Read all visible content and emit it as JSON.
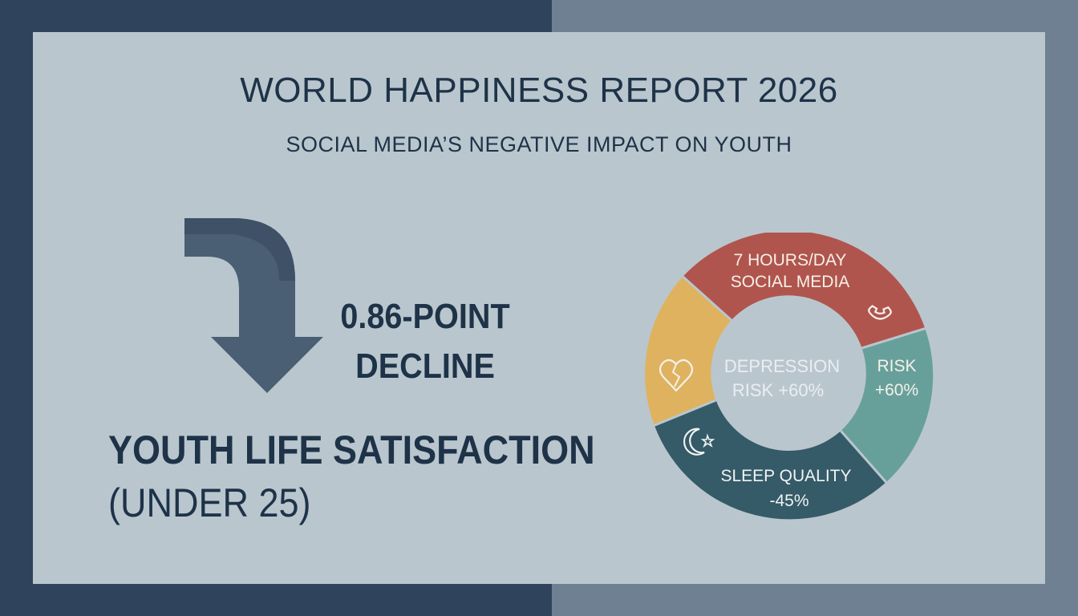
{
  "header": {
    "title": "WORLD HAPPINESS REPORT 2026",
    "subtitle": "SOCIAL MEDIA’S NEGATIVE IMPACT ON YOUTH"
  },
  "decline": {
    "line1": "0.86-POINT",
    "line2": "DECLINE"
  },
  "metric": {
    "title": "YOUTH LIFE SATISFACTION",
    "subtitle": "(UNDER 25)"
  },
  "donut": {
    "segments": [
      {
        "line1": "7 HOURS/DAY",
        "line2": "SOCIAL MEDIA",
        "color": "#b0554d",
        "icon": "phone-icon"
      },
      {
        "line1": "RISK",
        "line2": "+60%",
        "color": "#67a09a",
        "icon": ""
      },
      {
        "line1": "SLEEP QUALITY",
        "line2": "-45%",
        "color": "#355a68",
        "icon": "moon-star-icon"
      },
      {
        "line1": "",
        "line2": "",
        "color": "#dfb25f",
        "icon": "broken-heart-icon"
      }
    ],
    "center_line1": "DEPRESSION",
    "center_line2": "RISK +60%"
  },
  "colors": {
    "navy": "#2f445c",
    "slate": "#6e8092",
    "card": "#bac6ce",
    "text": "#1e3348",
    "arrow": "#4b5f74"
  }
}
